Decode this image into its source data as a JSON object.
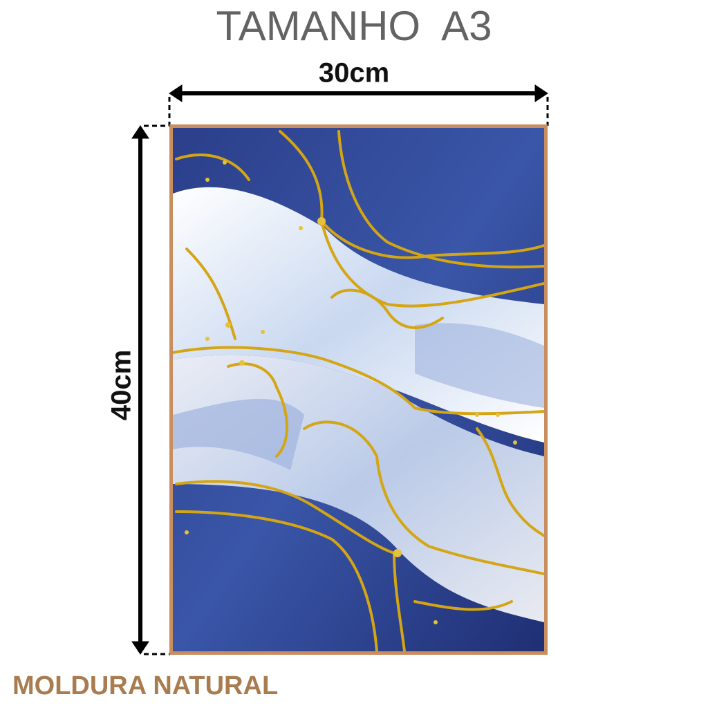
{
  "header": {
    "title": "TAMANHO  A3"
  },
  "dimensions": {
    "width": "30cm",
    "height": "40cm"
  },
  "footer": {
    "frame": "MOLDURA NATURAL"
  }
}
